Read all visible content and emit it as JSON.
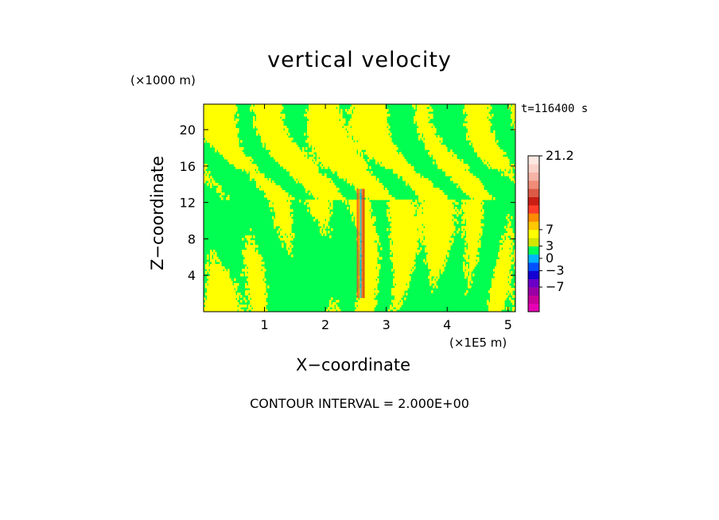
{
  "chart_data": {
    "type": "heatmap",
    "title": "vertical velocity",
    "xlabel": "X−coordinate",
    "ylabel": "Z−coordinate",
    "x_unit": "(×1E5 m)",
    "z_unit": "(×1000 m)",
    "time_label": "t=116400 s",
    "contour_label": "CONTOUR INTERVAL = 2.000E+00",
    "xlim": [
      0,
      5.12
    ],
    "ylim": [
      0,
      22.8
    ],
    "x_ticks": [
      1,
      2,
      3,
      4,
      5
    ],
    "x_tick_labels": [
      "1",
      "2",
      "3",
      "4",
      "5"
    ],
    "y_ticks": [
      4,
      8,
      12,
      16,
      20
    ],
    "y_tick_labels": [
      "4",
      "8",
      "12",
      "16",
      "20"
    ],
    "updraft_x": 2.58,
    "colorbar": {
      "levels": [
        -11,
        -9,
        -7,
        -5,
        -3,
        -1,
        1,
        3,
        5,
        7,
        9,
        11,
        15,
        21.2
      ],
      "colors": [
        "#e600b4",
        "#c8009a",
        "#9a00a6",
        "#6a00c8",
        "#1400d2",
        "#0050ff",
        "#00b4ff",
        "#00ff5a",
        "#d2e600",
        "#ffff00",
        "#ffc800",
        "#ff8c00",
        "#ff3c28",
        "#c81e14",
        "#dc5a46",
        "#f08c78",
        "#f5b4a6",
        "#fad2c8",
        "#fde8e2"
      ],
      "labels": [
        {
          "text": "21.2",
          "value": 21.2
        },
        {
          "text": "7",
          "value": 7
        },
        {
          "text": "3",
          "value": 3
        },
        {
          "text": "0",
          "value": 0
        },
        {
          "text": "−3",
          "value": -3
        },
        {
          "text": "−7",
          "value": -7
        }
      ]
    },
    "field_colors": {
      "background": "#00ff50",
      "positive": "#ffff00"
    }
  }
}
